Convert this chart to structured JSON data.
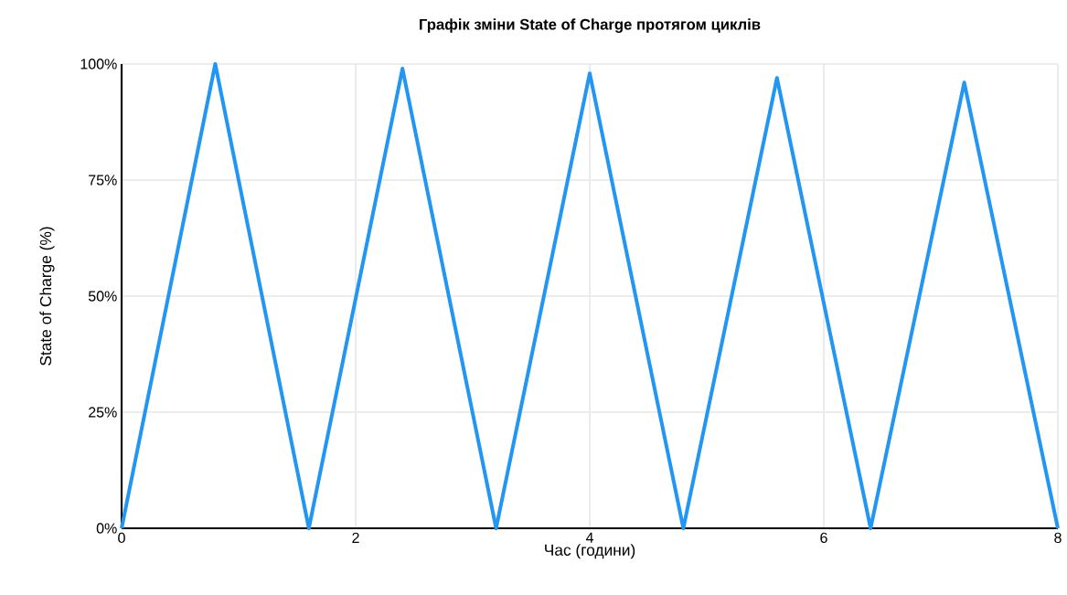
{
  "chart_data": {
    "type": "line",
    "title": "Графік зміни State of Charge протягом циклів",
    "xlabel": "Час (години)",
    "ylabel": "State of Charge (%)",
    "x": [
      0,
      0.8,
      1.6,
      2.4,
      3.2,
      4.0,
      4.8,
      5.6,
      6.4,
      7.2,
      8.0
    ],
    "series": [
      {
        "color": "#2196f3",
        "values": [
          0,
          100,
          0,
          99,
          0,
          98,
          0,
          97,
          0,
          96,
          0
        ]
      }
    ],
    "xlim": [
      0,
      8
    ],
    "ylim": [
      0,
      100
    ],
    "xticks": [
      0,
      2,
      4,
      6,
      8
    ],
    "yticks": [
      {
        "value": 0,
        "label": "0%"
      },
      {
        "value": 25,
        "label": "25%"
      },
      {
        "value": 50,
        "label": "50%"
      },
      {
        "value": 75,
        "label": "75%"
      },
      {
        "value": 100,
        "label": "100%"
      }
    ],
    "grid": true
  }
}
